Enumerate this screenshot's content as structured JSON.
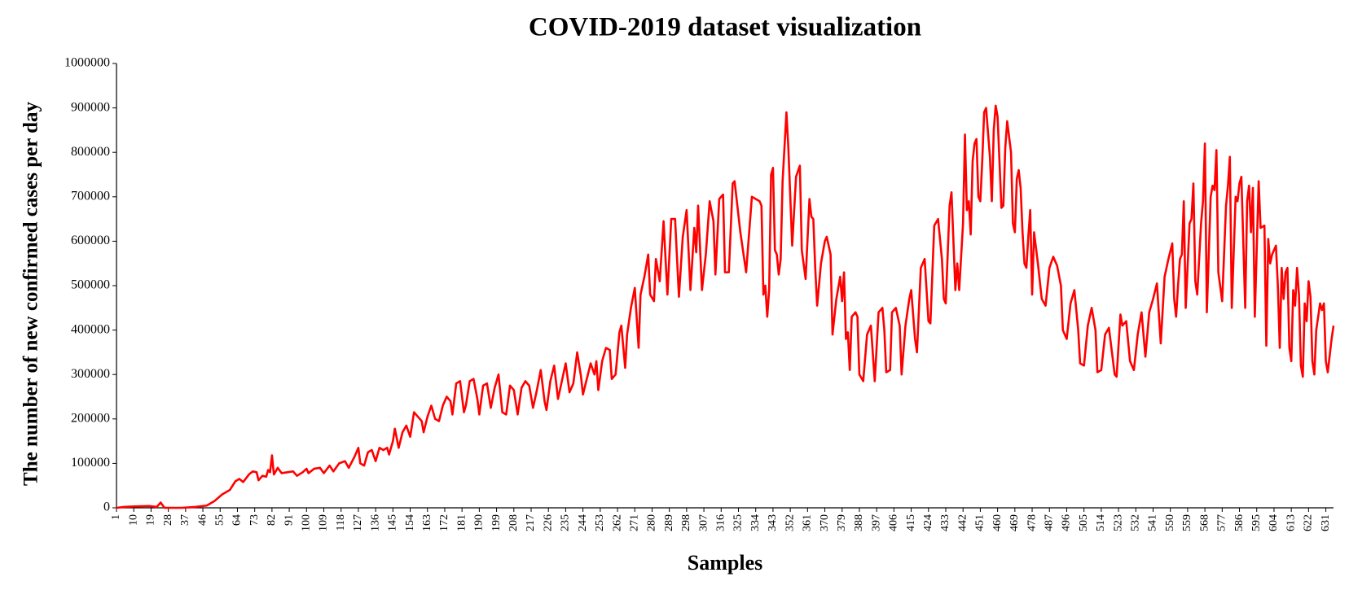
{
  "chart_data": {
    "type": "line",
    "title": "COVID-2019 dataset visualization",
    "x_label": "Samples",
    "y_label": "The number of new confirmed cases per day",
    "color": "#ff0000",
    "xlim": [
      1,
      635
    ],
    "ylim": [
      0,
      1000000
    ],
    "xticks": [
      1,
      10,
      19,
      28,
      37,
      46,
      55,
      64,
      73,
      82,
      91,
      100,
      109,
      118,
      127,
      136,
      145,
      154,
      163,
      172,
      181,
      190,
      199,
      208,
      217,
      226,
      235,
      244,
      253,
      262,
      271,
      280,
      289,
      298,
      307,
      316,
      325,
      334,
      343,
      352,
      361,
      370,
      379,
      388,
      397,
      406,
      415,
      424,
      433,
      442,
      451,
      460,
      469,
      478,
      487,
      496,
      505,
      514,
      523,
      532,
      541,
      550,
      559,
      568,
      577,
      586,
      595,
      604,
      613,
      622,
      631
    ],
    "yticks": [
      0,
      100000,
      200000,
      300000,
      400000,
      500000,
      600000,
      700000,
      800000,
      900000,
      1000000
    ],
    "x": [
      1,
      5,
      10,
      18,
      22,
      24,
      26,
      35,
      42,
      48,
      52,
      56,
      60,
      63,
      65,
      67,
      70,
      72,
      74,
      75,
      77,
      79,
      80,
      81,
      82,
      83,
      85,
      87,
      90,
      93,
      95,
      98,
      100,
      101,
      104,
      107,
      109,
      112,
      114,
      117,
      120,
      122,
      125,
      127,
      128,
      130,
      132,
      134,
      136,
      138,
      140,
      142,
      143,
      145,
      146,
      148,
      150,
      152,
      154,
      156,
      158,
      160,
      161,
      163,
      165,
      167,
      169,
      171,
      173,
      175,
      176,
      178,
      180,
      182,
      183,
      185,
      187,
      189,
      190,
      192,
      194,
      196,
      198,
      200,
      202,
      204,
      206,
      208,
      210,
      212,
      214,
      216,
      218,
      220,
      222,
      224,
      225,
      227,
      229,
      231,
      233,
      235,
      237,
      239,
      241,
      243,
      244,
      246,
      248,
      250,
      251,
      252,
      254,
      256,
      258,
      259,
      261,
      263,
      264,
      266,
      267,
      269,
      271,
      273,
      274,
      276,
      278,
      279,
      281,
      282,
      284,
      286,
      288,
      290,
      292,
      294,
      296,
      298,
      300,
      302,
      303,
      304,
      306,
      308,
      310,
      312,
      313,
      315,
      317,
      318,
      320,
      322,
      323,
      326,
      329,
      332,
      336,
      337,
      338,
      339,
      340,
      341,
      342,
      343,
      344,
      345,
      346,
      347,
      348,
      350,
      351,
      353,
      355,
      357,
      358,
      360,
      362,
      363,
      364,
      365,
      366,
      368,
      370,
      371,
      373,
      374,
      376,
      378,
      379,
      380,
      381,
      382,
      383,
      384,
      386,
      387,
      388,
      390,
      392,
      394,
      396,
      398,
      400,
      401,
      402,
      404,
      405,
      407,
      409,
      410,
      412,
      414,
      415,
      417,
      418,
      420,
      422,
      424,
      425,
      427,
      429,
      431,
      432,
      433,
      435,
      436,
      438,
      439,
      440,
      442,
      443,
      444,
      445,
      446,
      447,
      448,
      449,
      450,
      451,
      452,
      453,
      454,
      456,
      457,
      458,
      459,
      460,
      462,
      463,
      464,
      465,
      467,
      468,
      469,
      470,
      471,
      472,
      473,
      474,
      475,
      476,
      477,
      478,
      479,
      481,
      483,
      485,
      487,
      489,
      491,
      493,
      494,
      496,
      498,
      500,
      502,
      503,
      505,
      507,
      509,
      511,
      512,
      514,
      516,
      518,
      520,
      521,
      522,
      524,
      525,
      527,
      529,
      531,
      533,
      535,
      537,
      539,
      541,
      543,
      545,
      547,
      549,
      551,
      552,
      553,
      554,
      555,
      556,
      557,
      558,
      560,
      561,
      562,
      563,
      564,
      566,
      567,
      568,
      569,
      571,
      572,
      573,
      574,
      575,
      577,
      579,
      580,
      581,
      582,
      584,
      585,
      586,
      587,
      589,
      590,
      591,
      592,
      593,
      594,
      596,
      597,
      599,
      600,
      601,
      602,
      603,
      605,
      606,
      607,
      608,
      609,
      610,
      611,
      612,
      613,
      614,
      615,
      616,
      617,
      618,
      619,
      620,
      621,
      622,
      623,
      624,
      625,
      626,
      627,
      628,
      629,
      630,
      631,
      632,
      634,
      635
    ],
    "values": [
      0,
      2000,
      3000,
      4000,
      2000,
      12000,
      0,
      0,
      2000,
      5000,
      15000,
      30000,
      40000,
      60000,
      65000,
      58000,
      75000,
      82000,
      80000,
      62000,
      72000,
      70000,
      85000,
      80000,
      118000,
      75000,
      90000,
      78000,
      80000,
      82000,
      72000,
      80000,
      88000,
      78000,
      88000,
      90000,
      78000,
      95000,
      82000,
      100000,
      105000,
      90000,
      115000,
      135000,
      100000,
      95000,
      125000,
      130000,
      105000,
      135000,
      130000,
      135000,
      120000,
      150000,
      178000,
      135000,
      170000,
      185000,
      160000,
      215000,
      205000,
      195000,
      170000,
      205000,
      230000,
      200000,
      195000,
      230000,
      250000,
      240000,
      210000,
      280000,
      285000,
      215000,
      230000,
      285000,
      290000,
      245000,
      210000,
      275000,
      280000,
      225000,
      270000,
      300000,
      215000,
      210000,
      275000,
      265000,
      210000,
      270000,
      285000,
      275000,
      225000,
      265000,
      310000,
      240000,
      220000,
      285000,
      320000,
      245000,
      285000,
      325000,
      260000,
      280000,
      350000,
      295000,
      255000,
      290000,
      325000,
      300000,
      330000,
      265000,
      330000,
      360000,
      355000,
      290000,
      300000,
      395000,
      410000,
      315000,
      390000,
      450000,
      495000,
      360000,
      480000,
      520000,
      570000,
      480000,
      465000,
      560000,
      510000,
      645000,
      480000,
      650000,
      650000,
      475000,
      610000,
      670000,
      490000,
      630000,
      575000,
      680000,
      490000,
      570000,
      690000,
      645000,
      525000,
      695000,
      705000,
      530000,
      530000,
      730000,
      735000,
      620000,
      530000,
      700000,
      690000,
      680000,
      480000,
      500000,
      430000,
      490000,
      750000,
      765000,
      580000,
      570000,
      525000,
      560000,
      735000,
      890000,
      810000,
      590000,
      745000,
      770000,
      580000,
      515000,
      695000,
      655000,
      650000,
      540000,
      455000,
      550000,
      600000,
      610000,
      570000,
      390000,
      470000,
      520000,
      465000,
      530000,
      380000,
      395000,
      310000,
      430000,
      440000,
      430000,
      300000,
      285000,
      390000,
      410000,
      285000,
      440000,
      450000,
      400000,
      305000,
      310000,
      440000,
      450000,
      410000,
      300000,
      410000,
      470000,
      490000,
      380000,
      350000,
      540000,
      560000,
      420000,
      415000,
      635000,
      650000,
      560000,
      470000,
      460000,
      680000,
      710000,
      490000,
      550000,
      490000,
      640000,
      840000,
      670000,
      690000,
      615000,
      780000,
      820000,
      830000,
      700000,
      690000,
      780000,
      890000,
      900000,
      790000,
      690000,
      850000,
      905000,
      880000,
      675000,
      680000,
      810000,
      870000,
      800000,
      640000,
      620000,
      740000,
      760000,
      720000,
      620000,
      550000,
      540000,
      610000,
      670000,
      480000,
      620000,
      550000,
      470000,
      455000,
      540000,
      565000,
      545000,
      500000,
      400000,
      380000,
      460000,
      490000,
      400000,
      325000,
      320000,
      410000,
      450000,
      400000,
      305000,
      310000,
      390000,
      405000,
      335000,
      300000,
      295000,
      435000,
      410000,
      420000,
      330000,
      310000,
      390000,
      440000,
      340000,
      440000,
      470000,
      505000,
      370000,
      520000,
      560000,
      595000,
      470000,
      430000,
      500000,
      560000,
      570000,
      690000,
      450000,
      640000,
      650000,
      730000,
      510000,
      480000,
      640000,
      690000,
      820000,
      440000,
      700000,
      725000,
      715000,
      805000,
      530000,
      465000,
      680000,
      725000,
      790000,
      450000,
      700000,
      690000,
      730000,
      745000,
      450000,
      690000,
      725000,
      620000,
      720000,
      430000,
      735000,
      630000,
      635000,
      365000,
      605000,
      550000,
      570000,
      590000,
      500000,
      360000,
      540000,
      470000,
      530000,
      540000,
      360000,
      330000,
      490000,
      455000,
      540000,
      480000,
      320000,
      295000,
      460000,
      420000,
      510000,
      475000,
      330000,
      300000,
      400000,
      430000,
      460000,
      445000,
      460000,
      330000,
      305000,
      380000,
      410000
    ]
  }
}
